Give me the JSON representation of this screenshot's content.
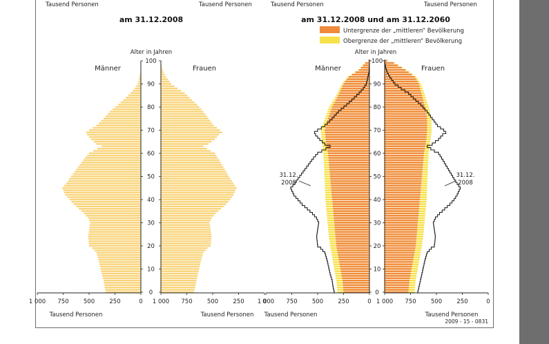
{
  "header": {
    "top_labels": [
      "Tausend Personen",
      "Tausend Personen",
      "Tausend Personen",
      "Tausend Personen"
    ]
  },
  "colors": {
    "yellow": "#f9d47a",
    "yellow_upper": "#f7e04a",
    "orange": "#ef8a3c",
    "outline": "#222222",
    "sidebar": "#6e6e6e"
  },
  "chart_data": [
    {
      "type": "bar",
      "orientation": "horizontal",
      "subtype": "population-pyramid",
      "title": "am 31.12.2008",
      "y_axis_label": "Alter in Jahren",
      "left_label": "Männer",
      "right_label": "Frauen",
      "x_axis_label": "Tausend Personen",
      "x_ticks": [
        1000,
        750,
        500,
        250,
        0
      ],
      "x_tick_labels": [
        "1 000",
        "750",
        "500",
        "250",
        "0"
      ],
      "xlim": [
        0,
        1000
      ],
      "y_ticks": [
        0,
        10,
        20,
        30,
        40,
        50,
        60,
        70,
        80,
        90,
        100
      ],
      "ylim": [
        0,
        100
      ],
      "series": [
        {
          "name": "Männer",
          "profile": [
            [
              0,
              340
            ],
            [
              2,
              350
            ],
            [
              5,
              360
            ],
            [
              8,
              380
            ],
            [
              10,
              390
            ],
            [
              14,
              410
            ],
            [
              17,
              430
            ],
            [
              19,
              470
            ],
            [
              20,
              500
            ],
            [
              24,
              510
            ],
            [
              27,
              500
            ],
            [
              30,
              490
            ],
            [
              32,
              510
            ],
            [
              34,
              550
            ],
            [
              36,
              600
            ],
            [
              38,
              650
            ],
            [
              40,
              690
            ],
            [
              42,
              730
            ],
            [
              44,
              750
            ],
            [
              45,
              760
            ],
            [
              47,
              720
            ],
            [
              49,
              690
            ],
            [
              52,
              640
            ],
            [
              55,
              590
            ],
            [
              58,
              540
            ],
            [
              60,
              500
            ],
            [
              61,
              460
            ],
            [
              63,
              380
            ],
            [
              64,
              430
            ],
            [
              66,
              480
            ],
            [
              68,
              520
            ],
            [
              69,
              530
            ],
            [
              70,
              500
            ],
            [
              72,
              430
            ],
            [
              75,
              360
            ],
            [
              78,
              300
            ],
            [
              81,
              220
            ],
            [
              83,
              170
            ],
            [
              86,
              100
            ],
            [
              88,
              60
            ],
            [
              90,
              30
            ],
            [
              93,
              15
            ],
            [
              95,
              5
            ],
            [
              97,
              2
            ],
            [
              99,
              1
            ],
            [
              100,
              0
            ]
          ]
        },
        {
          "name": "Frauen",
          "profile": [
            [
              0,
              320
            ],
            [
              2,
              330
            ],
            [
              5,
              345
            ],
            [
              8,
              360
            ],
            [
              10,
              370
            ],
            [
              14,
              390
            ],
            [
              17,
              410
            ],
            [
              19,
              450
            ],
            [
              20,
              480
            ],
            [
              24,
              490
            ],
            [
              27,
              480
            ],
            [
              30,
              470
            ],
            [
              32,
              490
            ],
            [
              34,
              530
            ],
            [
              36,
              580
            ],
            [
              38,
              630
            ],
            [
              40,
              670
            ],
            [
              42,
              700
            ],
            [
              44,
              720
            ],
            [
              45,
              730
            ],
            [
              47,
              700
            ],
            [
              49,
              670
            ],
            [
              52,
              630
            ],
            [
              55,
              590
            ],
            [
              58,
              550
            ],
            [
              60,
              520
            ],
            [
              61,
              480
            ],
            [
              63,
              410
            ],
            [
              64,
              460
            ],
            [
              66,
              520
            ],
            [
              68,
              560
            ],
            [
              69,
              590
            ],
            [
              70,
              570
            ],
            [
              72,
              510
            ],
            [
              75,
              460
            ],
            [
              78,
              410
            ],
            [
              81,
              350
            ],
            [
              83,
              300
            ],
            [
              86,
              230
            ],
            [
              88,
              160
            ],
            [
              90,
              100
            ],
            [
              93,
              50
            ],
            [
              95,
              25
            ],
            [
              97,
              10
            ],
            [
              99,
              3
            ],
            [
              100,
              1
            ]
          ]
        }
      ]
    },
    {
      "type": "bar",
      "orientation": "horizontal",
      "subtype": "population-pyramid",
      "title": "am 31.12.2008 und am 31.12.2060",
      "y_axis_label": "Alter in Jahren",
      "left_label": "Männer",
      "right_label": "Frauen",
      "x_axis_label": "Tausend Personen",
      "x_ticks": [
        1000,
        750,
        500,
        250,
        0
      ],
      "x_tick_labels": [
        "1 000",
        "750",
        "500",
        "250",
        "0"
      ],
      "xlim": [
        0,
        1000
      ],
      "y_ticks": [
        0,
        10,
        20,
        30,
        40,
        50,
        60,
        70,
        80,
        90,
        100
      ],
      "ylim": [
        0,
        100
      ],
      "legend": [
        {
          "label": "Untergrenze der „mittleren“ Bevölkerung",
          "color": "#ef8a3c"
        },
        {
          "label": "Obergrenze der „mittleren“ Bevölkerung",
          "color": "#f7e04a"
        }
      ],
      "annotation_left": [
        "31.12.",
        "2008"
      ],
      "annotation_right": [
        "31.12.",
        "2008"
      ],
      "source_note": "2009 - 15 - 0831",
      "series": [
        {
          "name": "Untergrenze der „mittleren“ Bevölkerung",
          "side": "left",
          "profile": [
            [
              0,
              250
            ],
            [
              5,
              260
            ],
            [
              10,
              280
            ],
            [
              15,
              300
            ],
            [
              20,
              320
            ],
            [
              25,
              330
            ],
            [
              30,
              340
            ],
            [
              35,
              350
            ],
            [
              40,
              360
            ],
            [
              45,
              370
            ],
            [
              50,
              380
            ],
            [
              55,
              390
            ],
            [
              60,
              400
            ],
            [
              65,
              420
            ],
            [
              70,
              430
            ],
            [
              75,
              400
            ],
            [
              80,
              360
            ],
            [
              85,
              300
            ],
            [
              90,
              250
            ],
            [
              93,
              200
            ],
            [
              96,
              100
            ],
            [
              99,
              40
            ],
            [
              100,
              10
            ]
          ]
        },
        {
          "name": "Obergrenze der „mittleren“ Bevölkerung",
          "side": "left",
          "profile": [
            [
              0,
              310
            ],
            [
              5,
              320
            ],
            [
              10,
              340
            ],
            [
              15,
              360
            ],
            [
              20,
              380
            ],
            [
              25,
              395
            ],
            [
              30,
              405
            ],
            [
              35,
              415
            ],
            [
              40,
              425
            ],
            [
              45,
              430
            ],
            [
              50,
              435
            ],
            [
              55,
              440
            ],
            [
              60,
              445
            ],
            [
              65,
              460
            ],
            [
              70,
              470
            ],
            [
              75,
              430
            ],
            [
              80,
              390
            ],
            [
              85,
              320
            ],
            [
              90,
              265
            ],
            [
              93,
              210
            ],
            [
              96,
              110
            ],
            [
              99,
              45
            ],
            [
              100,
              12
            ]
          ]
        },
        {
          "name": "Untergrenze der „mittleren“ Bevölkerung",
          "side": "right",
          "profile": [
            [
              0,
              230
            ],
            [
              5,
              240
            ],
            [
              10,
              260
            ],
            [
              15,
              280
            ],
            [
              20,
              300
            ],
            [
              25,
              310
            ],
            [
              30,
              320
            ],
            [
              35,
              330
            ],
            [
              40,
              340
            ],
            [
              45,
              350
            ],
            [
              50,
              360
            ],
            [
              55,
              370
            ],
            [
              60,
              380
            ],
            [
              65,
              400
            ],
            [
              70,
              410
            ],
            [
              75,
              410
            ],
            [
              80,
              390
            ],
            [
              85,
              360
            ],
            [
              90,
              330
            ],
            [
              93,
              290
            ],
            [
              96,
              200
            ],
            [
              99,
              90
            ],
            [
              100,
              25
            ]
          ]
        },
        {
          "name": "Obergrenze der „mittleren“ Bevölkerung",
          "side": "right",
          "profile": [
            [
              0,
              290
            ],
            [
              5,
              300
            ],
            [
              10,
              320
            ],
            [
              15,
              340
            ],
            [
              20,
              360
            ],
            [
              25,
              375
            ],
            [
              30,
              385
            ],
            [
              35,
              395
            ],
            [
              40,
              405
            ],
            [
              45,
              410
            ],
            [
              50,
              415
            ],
            [
              55,
              420
            ],
            [
              60,
              425
            ],
            [
              65,
              440
            ],
            [
              70,
              455
            ],
            [
              75,
              450
            ],
            [
              80,
              425
            ],
            [
              85,
              390
            ],
            [
              90,
              350
            ],
            [
              93,
              305
            ],
            [
              96,
              210
            ],
            [
              99,
              95
            ],
            [
              100,
              28
            ]
          ]
        },
        {
          "name": "31.12. 2008",
          "side": "left",
          "kind": "outline"
        },
        {
          "name": "31.12. 2008",
          "side": "right",
          "kind": "outline"
        }
      ]
    }
  ]
}
